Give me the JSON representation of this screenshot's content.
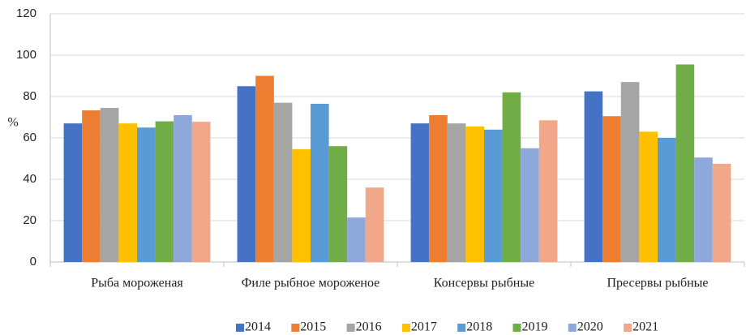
{
  "chart_data": {
    "type": "bar",
    "ylabel": "%",
    "categories": [
      "Рыба мороженая",
      "Филе рыбное мороженое",
      "Консервы рыбные",
      "Пресервы рыбные"
    ],
    "series": [
      {
        "name": "2014",
        "color": "#4472c4",
        "values": [
          67,
          85,
          67,
          82.5
        ]
      },
      {
        "name": "2015",
        "color": "#ed7d31",
        "values": [
          73.3,
          90,
          71,
          70.5
        ]
      },
      {
        "name": "2016",
        "color": "#a5a5a5",
        "values": [
          74.5,
          77,
          67,
          87
        ]
      },
      {
        "name": "2017",
        "color": "#ffc000",
        "values": [
          67,
          54.5,
          65.5,
          63
        ]
      },
      {
        "name": "2018",
        "color": "#5b9bd5",
        "values": [
          65,
          76.5,
          64,
          60
        ]
      },
      {
        "name": "2019",
        "color": "#70ad47",
        "values": [
          68,
          56,
          82,
          95.5
        ]
      },
      {
        "name": "2020",
        "color": "#8fa8dc",
        "values": [
          71,
          21.5,
          55,
          50.5
        ]
      },
      {
        "name": "2021",
        "color": "#f1a88a",
        "values": [
          67.8,
          36,
          68.5,
          47.5
        ]
      }
    ],
    "ylim": [
      0,
      120
    ],
    "yticks": [
      0,
      20,
      40,
      60,
      80,
      100,
      120
    ],
    "grid": true,
    "legend": "bottom"
  }
}
